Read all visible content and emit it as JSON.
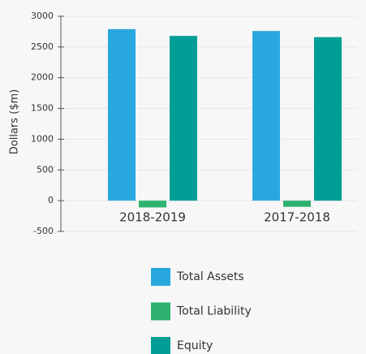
{
  "chart_data": {
    "type": "bar",
    "y_label": "Dollars ($m)",
    "categories": [
      "2018-2019",
      "2017-2018"
    ],
    "series": [
      {
        "name": "Total Assets",
        "color": "#29a8e0",
        "values": [
          2790,
          2760
        ]
      },
      {
        "name": "Total Liability",
        "color": "#2db36f",
        "values": [
          -110,
          -100
        ]
      },
      {
        "name": "Equity",
        "color": "#009e96",
        "values": [
          2680,
          2660
        ]
      }
    ],
    "ylim": [
      -500,
      3000
    ],
    "yticks": [
      -500,
      0,
      500,
      1000,
      1500,
      2000,
      2500,
      3000
    ],
    "grid": true,
    "legend": "bottom"
  }
}
